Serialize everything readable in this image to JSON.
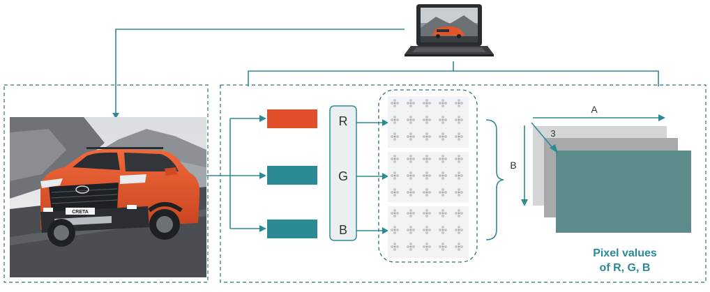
{
  "colors": {
    "teal": "#2b8a96",
    "orange": "#e2502b",
    "dash": "#2d6f7a",
    "sky": "#e8ecef",
    "mountain": "#7d8186",
    "road": "#3d3f42",
    "car_body": "#e2552a",
    "car_dark": "#1e2124",
    "laptop_body": "#2a2d30",
    "layer_back": "#d3d5d6",
    "layer_mid": "#a7aaab",
    "layer_front": "#5b8b8b",
    "rgb_box": "#eceff1",
    "matrix_bg": "#f1f3f4",
    "dot": "#c4c8cb",
    "title_text": "#2b8a96"
  },
  "icons": {
    "laptop": "laptop-icon",
    "car_photo": "car-photo"
  },
  "car": {
    "plate_text": "CRETA"
  },
  "channels": {
    "r_label": "R",
    "g_label": "G",
    "b_label": "B"
  },
  "output": {
    "width_label": "A",
    "height_label": "B",
    "depth_label": "3",
    "matrix_height_label": "B",
    "caption_line1": "Pixel values",
    "caption_line2": "of R, G, B"
  }
}
